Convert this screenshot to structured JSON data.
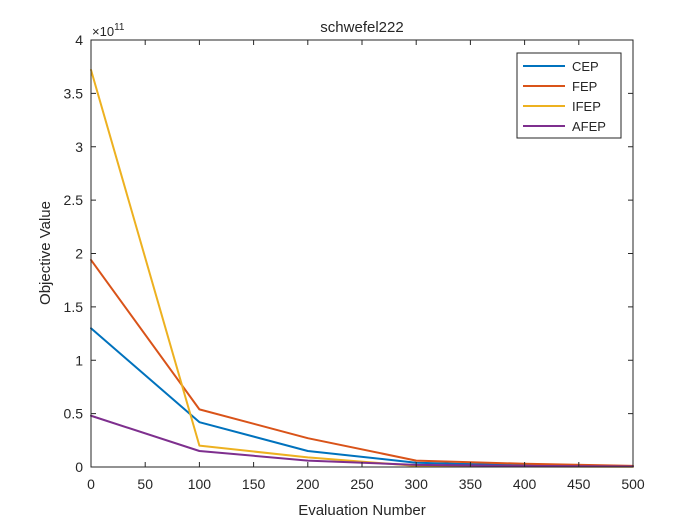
{
  "chart_data": {
    "type": "line",
    "title": "schwefel222",
    "xlabel": "Evaluation Number",
    "ylabel": "Objective Value",
    "y_exponent_label": "×10",
    "y_exponent_power": "11",
    "xlim": [
      0,
      500
    ],
    "ylim": [
      0,
      4
    ],
    "x_ticks": [
      0,
      50,
      100,
      150,
      200,
      250,
      300,
      350,
      400,
      450,
      500
    ],
    "x_tick_labels": [
      "0",
      "50",
      "100",
      "150",
      "200",
      "250",
      "300",
      "350",
      "400",
      "450",
      "500"
    ],
    "y_ticks": [
      0,
      0.5,
      1,
      1.5,
      2,
      2.5,
      3,
      3.5,
      4
    ],
    "y_tick_labels": [
      "0",
      "0.5",
      "1",
      "1.5",
      "2",
      "2.5",
      "3",
      "3.5",
      "4"
    ],
    "grid": false,
    "legend_position": "top-right",
    "x": [
      0,
      100,
      200,
      300,
      400,
      500
    ],
    "series": [
      {
        "name": "CEP",
        "color": "#0072BD",
        "values": [
          1.3,
          0.42,
          0.15,
          0.04,
          0.015,
          0.005
        ]
      },
      {
        "name": "FEP",
        "color": "#D95319",
        "values": [
          1.94,
          0.54,
          0.27,
          0.06,
          0.03,
          0.01
        ]
      },
      {
        "name": "IFEP",
        "color": "#EDB120",
        "values": [
          3.72,
          0.2,
          0.09,
          0.01,
          0.005,
          0.002
        ]
      },
      {
        "name": "AFEP",
        "color": "#7E2F8E",
        "values": [
          0.48,
          0.15,
          0.06,
          0.02,
          0.01,
          0.005
        ]
      }
    ]
  }
}
